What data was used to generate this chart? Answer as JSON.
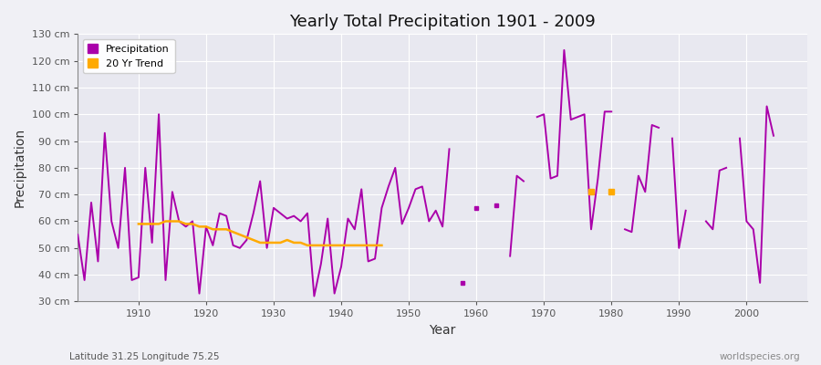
{
  "title": "Yearly Total Precipitation 1901 - 2009",
  "xlabel": "Year",
  "ylabel": "Precipitation",
  "subtitle_left": "Latitude 31.25 Longitude 75.25",
  "subtitle_right": "worldspecies.org",
  "ylim": [
    30,
    130
  ],
  "ytick_labels": [
    "30 cm",
    "40 cm",
    "50 cm",
    "60 cm",
    "70 cm",
    "80 cm",
    "90 cm",
    "100 cm",
    "110 cm",
    "120 cm",
    "130 cm"
  ],
  "ytick_values": [
    30,
    40,
    50,
    60,
    70,
    80,
    90,
    100,
    110,
    120,
    130
  ],
  "fig_bg_color": "#f0f0f5",
  "plot_bg_color": "#e8e8f0",
  "precip_color": "#aa00aa",
  "trend_color": "#ffaa00",
  "precip_linewidth": 1.4,
  "trend_linewidth": 1.8,
  "years": [
    1901,
    1902,
    1903,
    1904,
    1905,
    1906,
    1907,
    1908,
    1909,
    1910,
    1911,
    1912,
    1913,
    1914,
    1915,
    1916,
    1917,
    1918,
    1919,
    1920,
    1921,
    1922,
    1923,
    1924,
    1925,
    1926,
    1927,
    1928,
    1929,
    1930,
    1931,
    1932,
    1933,
    1934,
    1935,
    1936,
    1937,
    1938,
    1939,
    1940,
    1941,
    1942,
    1943,
    1944,
    1945,
    1946,
    1947,
    1948,
    1949,
    1950,
    1951,
    1952,
    1953,
    1954,
    1955,
    1956,
    1957,
    1958,
    1959,
    1960,
    1961,
    1962,
    1963,
    1964,
    1965,
    1966,
    1967,
    1968,
    1969,
    1970,
    1971,
    1972,
    1973,
    1974,
    1975,
    1976,
    1977,
    1978,
    1979,
    1980,
    1981,
    1982,
    1983,
    1984,
    1985,
    1986,
    1987,
    1988,
    1989,
    1990,
    1991,
    1992,
    1993,
    1994,
    1995,
    1996,
    1997,
    1998,
    1999,
    2000,
    2001,
    2002,
    2003,
    2004,
    2005,
    2006,
    2007,
    2008,
    2009
  ],
  "precip": [
    55,
    38,
    67,
    45,
    93,
    60,
    50,
    80,
    38,
    39,
    80,
    52,
    100,
    38,
    71,
    60,
    58,
    60,
    33,
    58,
    51,
    63,
    62,
    51,
    50,
    53,
    63,
    75,
    50,
    65,
    63,
    61,
    62,
    60,
    63,
    32,
    44,
    61,
    33,
    43,
    61,
    57,
    72,
    45,
    46,
    65,
    73,
    80,
    59,
    65,
    72,
    73,
    60,
    64,
    58,
    87,
    null,
    37,
    null,
    65,
    null,
    null,
    66,
    null,
    47,
    77,
    75,
    null,
    99,
    100,
    76,
    77,
    124,
    98,
    99,
    100,
    57,
    76,
    101,
    101,
    null,
    57,
    56,
    77,
    71,
    96,
    95,
    null,
    91,
    50,
    64,
    null,
    null,
    60,
    57,
    79,
    80,
    null,
    91,
    60,
    57,
    37,
    103,
    92,
    null,
    null,
    null,
    null,
    null
  ],
  "trend_years": [
    1910,
    1911,
    1912,
    1913,
    1914,
    1915,
    1916,
    1917,
    1918,
    1919,
    1920,
    1921,
    1922,
    1923,
    1924,
    1925,
    1926,
    1927,
    1928,
    1929,
    1930,
    1931,
    1932,
    1933,
    1934,
    1935,
    1936,
    1937,
    1938,
    1939,
    1940,
    1941,
    1942,
    1943,
    1944,
    1945,
    1946
  ],
  "trend": [
    59,
    59,
    59,
    59,
    60,
    60,
    60,
    59,
    59,
    58,
    58,
    57,
    57,
    57,
    56,
    55,
    54,
    53,
    52,
    52,
    52,
    52,
    53,
    52,
    52,
    51,
    51,
    51,
    51,
    51,
    51,
    51,
    51,
    51,
    51,
    51,
    51
  ],
  "trend_dot_years": [
    1977,
    1980
  ],
  "trend_dot_vals": [
    71,
    71
  ],
  "isolated_precip_years": [],
  "isolated_precip_vals": []
}
